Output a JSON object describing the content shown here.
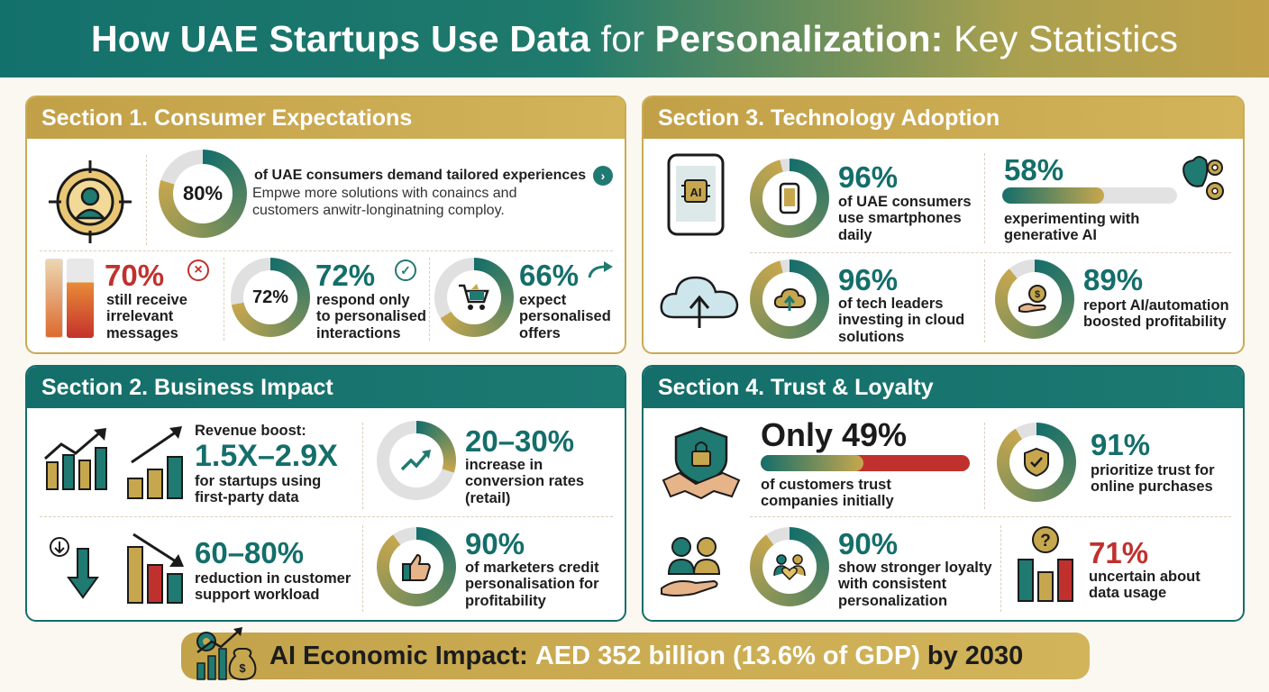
{
  "title": {
    "part1": "How UAE Startups Use Data",
    "part2": "for",
    "part3": "Personalization:",
    "part4": "Key Statistics"
  },
  "colors": {
    "teal": "#146e6a",
    "gold": "#c7a74e",
    "red": "#c0312e"
  },
  "section1": {
    "heading": "Section 1. Consumer Expectations",
    "stat80": {
      "value": "80%",
      "fraction": 0.8,
      "label": "of UAE consumers demand tailored experiences",
      "sub1": "Empwe more solutions with conaincs and",
      "sub2": "customers anwitr-longinatning comploy."
    },
    "stat70": {
      "value": "70%",
      "fraction": 0.7,
      "line1": "still receive",
      "line2": "irrelevant",
      "line3": "messages"
    },
    "stat72": {
      "value": "72%",
      "ring_text": "72%",
      "fraction": 0.72,
      "line1": "respond only",
      "line2": "to personalised",
      "line3": "interactions"
    },
    "stat66": {
      "value": "66%",
      "fraction": 0.66,
      "line1": "expect",
      "line2": "personalised",
      "line3": "offers"
    }
  },
  "section2": {
    "heading": "Section 2. Business Impact",
    "revenue": {
      "head": "Revenue boost:",
      "value": "1.5X–2.9X",
      "line1": "for startups using",
      "line2": "first-party data"
    },
    "conversion": {
      "value": "20–30%",
      "fraction": 0.3,
      "line1": "increase in",
      "line2": "conversion rates",
      "line3": "(retail)"
    },
    "support": {
      "value": "60–80%",
      "line1": "reduction in customer",
      "line2": "support workload"
    },
    "marketers": {
      "value": "90%",
      "fraction": 0.9,
      "line1": "of marketers credit",
      "line2": "personalisation for",
      "line3": "profitability"
    }
  },
  "section3": {
    "heading": "Section 3. Technology Adoption",
    "phones": {
      "value": "96%",
      "fraction": 0.96,
      "line1": "of UAE consumers",
      "line2": "use smartphones",
      "line3": "daily"
    },
    "genai": {
      "value": "58%",
      "fraction": 0.58,
      "line1": "experimenting with",
      "line2": "generative AI"
    },
    "cloud": {
      "value": "96%",
      "fraction": 0.96,
      "line1": "of tech leaders",
      "line2": "investing in cloud",
      "line3": "solutions"
    },
    "profit": {
      "value": "89%",
      "fraction": 0.89,
      "line1": "report AI/automation",
      "line2": "boosted profitability"
    }
  },
  "section4": {
    "heading": "Section 4. Trust & Loyalty",
    "trust": {
      "value": "Only 49%",
      "fraction": 0.49,
      "line1": "of customers trust",
      "line2": "companies initially"
    },
    "online": {
      "value": "91%",
      "fraction": 0.91,
      "line1": "prioritize trust for",
      "line2": "online purchases"
    },
    "loyalty": {
      "value": "90%",
      "fraction": 0.9,
      "line1": "show stronger loyalty",
      "line2": "with consistent",
      "line3": "personalization"
    },
    "uncertain": {
      "value": "71%",
      "line1": "uncertain about",
      "line2": "data usage"
    }
  },
  "footer": {
    "label": "AI Economic Impact:",
    "value": "AED 352 billion (13.6% of GDP)",
    "suffix": "by 2030"
  }
}
